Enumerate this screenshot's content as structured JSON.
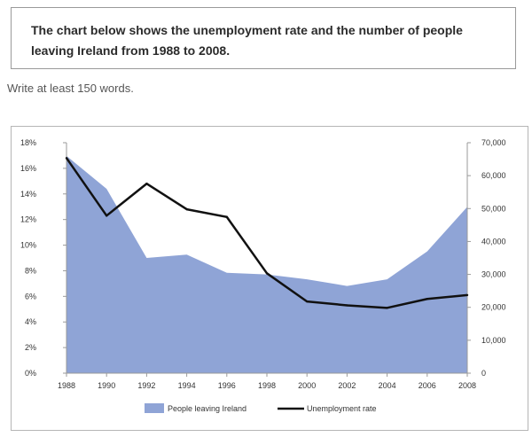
{
  "task": {
    "prompt": "The chart below shows the unemployment rate and the number of people leaving Ireland from 1988 to 2008.",
    "instruction": "Write at least 150 words."
  },
  "colors": {
    "area_fill": "#8fa4d6",
    "line": "#111111",
    "axis": "#9a9a9a",
    "text": "#333333"
  },
  "chart_data": {
    "type": "area",
    "title": "",
    "x": [
      "1988",
      "1990",
      "1992",
      "1994",
      "1996",
      "1998",
      "2000",
      "2002",
      "2004",
      "2006",
      "2008"
    ],
    "xlabel": "",
    "left_axis": {
      "ylim": [
        0,
        18
      ],
      "ticks": [
        "0%",
        "2%",
        "4%",
        "6%",
        "8%",
        "10%",
        "12%",
        "14%",
        "16%",
        "18%"
      ]
    },
    "right_axis": {
      "ylim": [
        0,
        70000
      ],
      "ticks": [
        "0",
        "10,000",
        "20,000",
        "30,000",
        "40,000",
        "50,000",
        "60,000",
        "70,000"
      ]
    },
    "series": [
      {
        "name": "People leaving Ireland",
        "kind": "area",
        "axis": "right",
        "values": [
          66000,
          56000,
          35000,
          36000,
          30500,
          30000,
          28500,
          26500,
          28500,
          37000,
          50500
        ]
      },
      {
        "name": "Unemployment rate",
        "kind": "line",
        "axis": "left",
        "values": [
          16.8,
          12.3,
          14.8,
          12.8,
          12.2,
          7.8,
          5.6,
          5.3,
          5.1,
          5.8,
          6.1
        ]
      }
    ],
    "grid": false,
    "legend_position": "bottom-center"
  }
}
